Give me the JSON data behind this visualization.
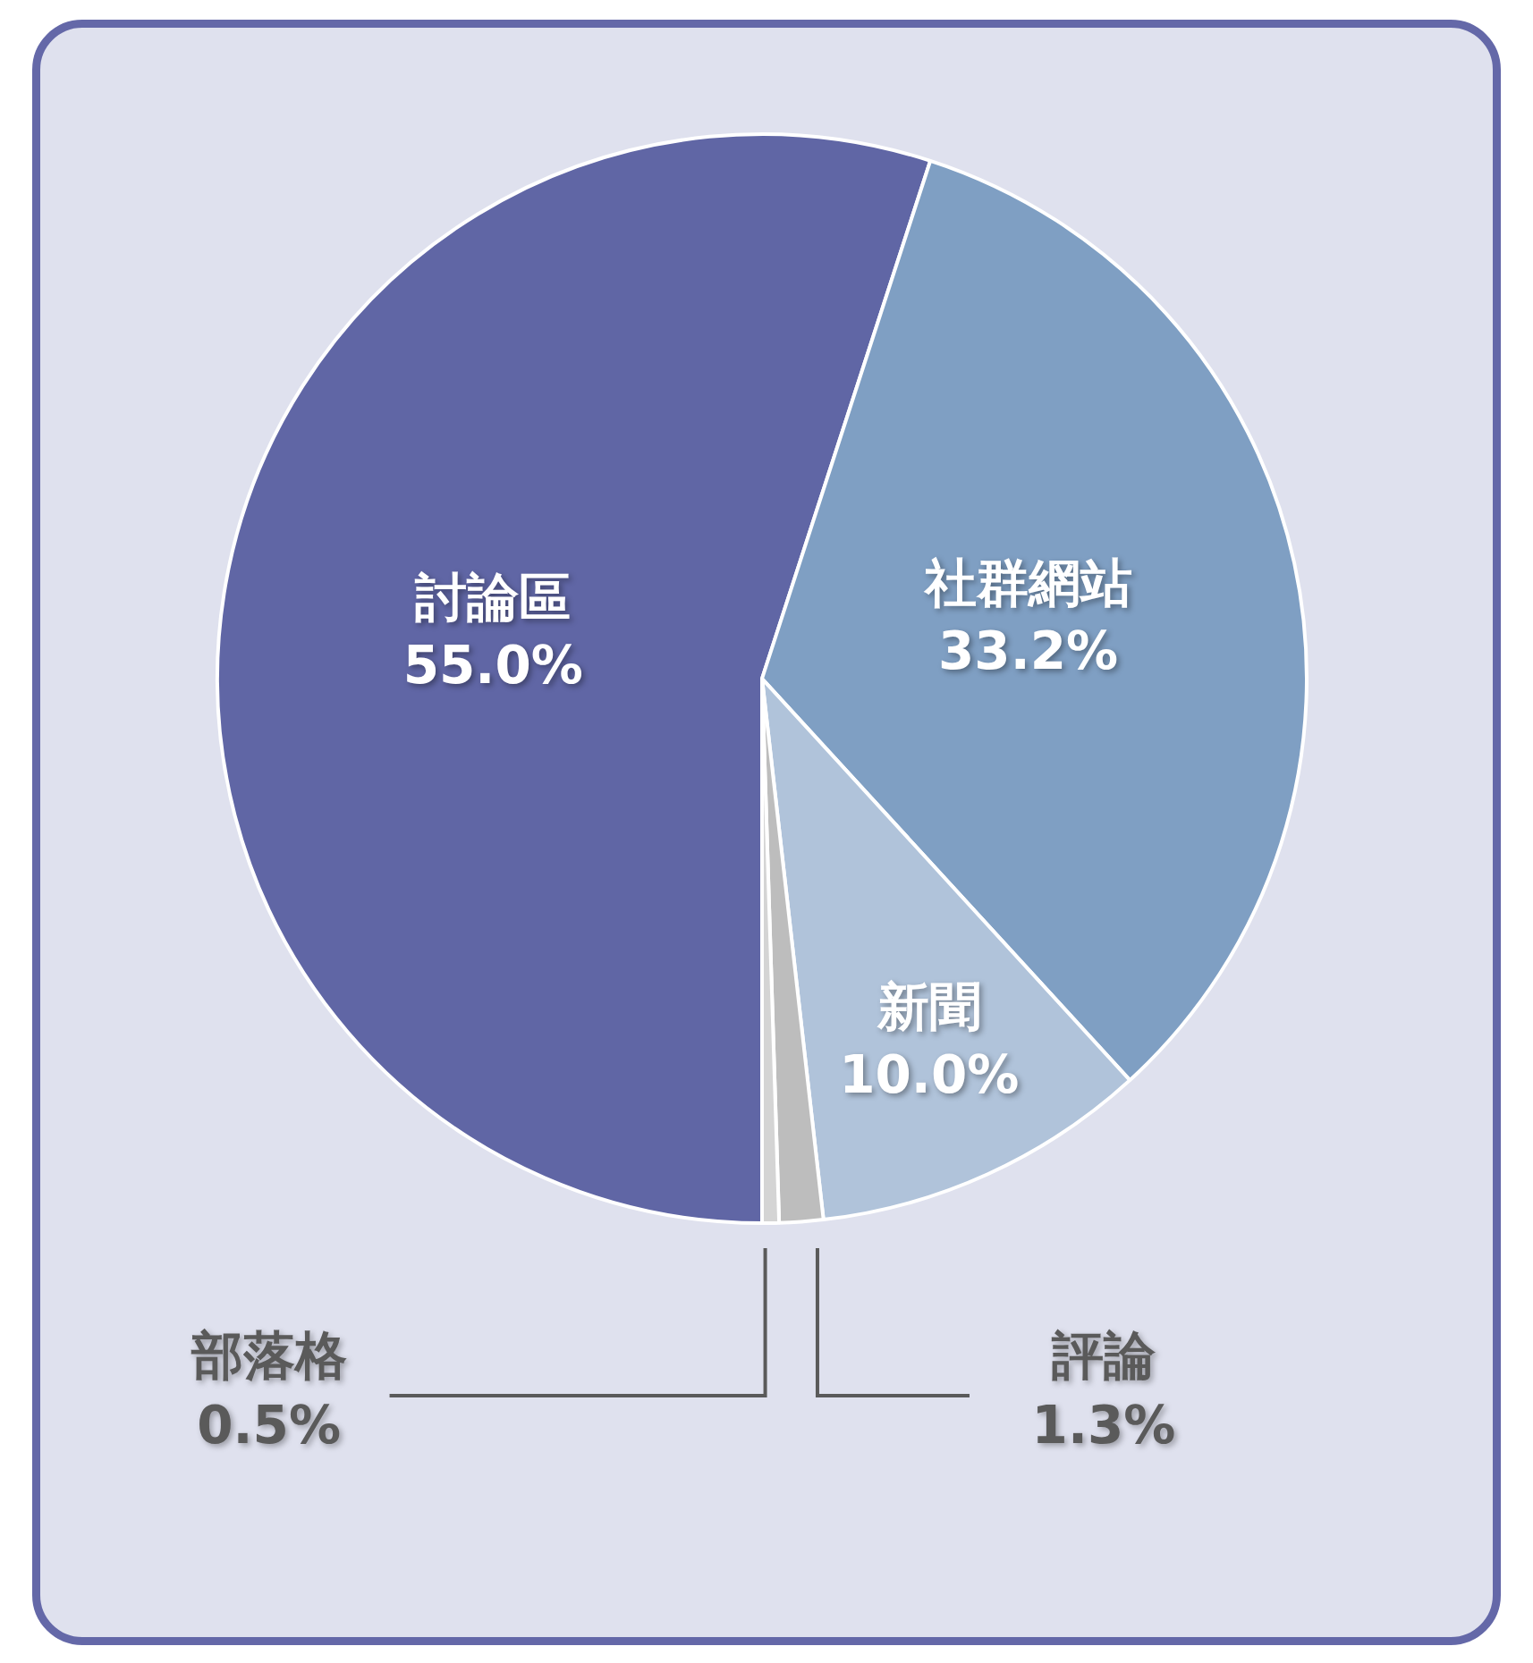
{
  "chart_data": {
    "type": "pie",
    "categories": [
      "討論區",
      "社群網站",
      "新聞",
      "評論",
      "部落格"
    ],
    "values": [
      55.0,
      33.2,
      10.0,
      1.3,
      0.5
    ],
    "colors": [
      "#6066a5",
      "#7f9fc3",
      "#b0c3da",
      "#bdbdbd",
      "#d4d4d4"
    ],
    "value_labels": [
      "55.0%",
      "33.2%",
      "10.0%",
      "1.3%",
      "0.5%"
    ],
    "legend": false
  }
}
